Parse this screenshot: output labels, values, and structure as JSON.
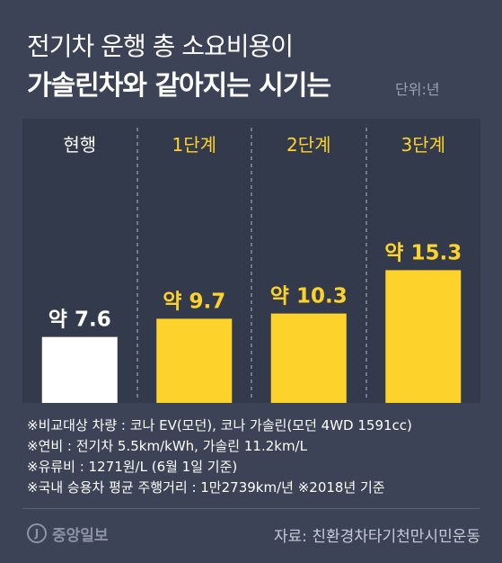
{
  "header": {
    "title_line1": "전기차 운행 총 소요비용이",
    "title_line2": "가솔린차와 같아지는 시기는",
    "unit": "단위:년"
  },
  "colors": {
    "background": "#3c4356",
    "panel": "#333a4b",
    "current_bar": "#ffffff",
    "stage_bar": "#fdd22a",
    "current_label": "#ffffff",
    "stage_label": "#fdd22a"
  },
  "chart_data": {
    "type": "bar",
    "title": "전기차 운행 총 소요비용이 가솔린차와 같아지는 시기는",
    "unit": "단위:년",
    "categories": [
      "현행",
      "1단계",
      "2단계",
      "3단계"
    ],
    "values": [
      7.6,
      9.7,
      10.3,
      15.3
    ],
    "value_labels": [
      "약 7.6",
      "약 9.7",
      "약 10.3",
      "약 15.3"
    ],
    "ylim": [
      0,
      17.2
    ],
    "grid": false,
    "dividers": "dashed vertical between columns"
  },
  "notes": [
    "※비교대상 차량 : 코나 EV(모던), 코나 가솔린(모던 4WD 1591cc)",
    "※연비 : 전기차 5.5km/kWh, 가솔린 11.2km/L",
    "※유류비 : 1271원/L (6월 1일 기준)",
    "※국내 승용차 평균 주행거리 : 1만2739km/년 ※2018년 기준"
  ],
  "footer": {
    "logo_text": "중앙일보",
    "logo_mark": "J",
    "source": "자료: 친환경차타기천만시민운동"
  }
}
